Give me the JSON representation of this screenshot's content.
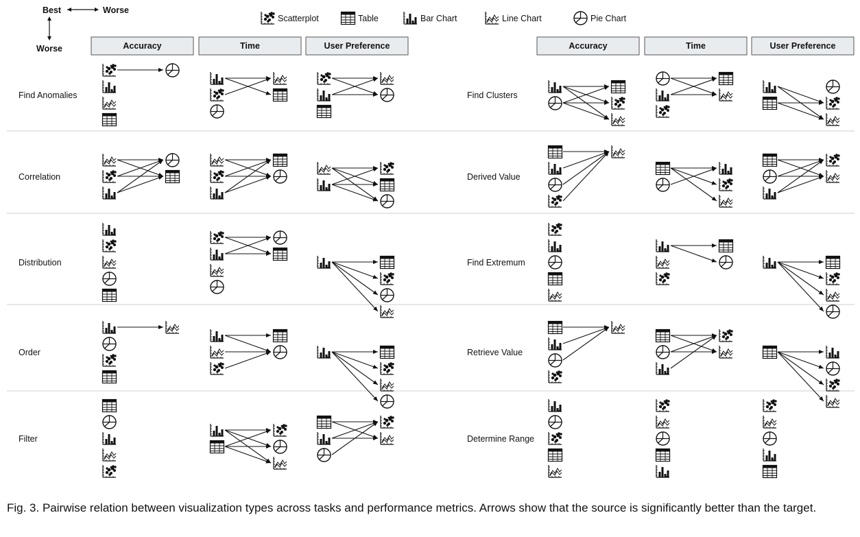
{
  "axis_legend": {
    "best": "Best",
    "worse_h": "Worse",
    "worse_v": "Worse"
  },
  "legend": [
    {
      "type": "scatter",
      "label": "Scatterplot"
    },
    {
      "type": "table",
      "label": "Table"
    },
    {
      "type": "bar",
      "label": "Bar  Chart"
    },
    {
      "type": "line",
      "label": "Line Chart"
    },
    {
      "type": "pie",
      "label": "Pie Chart"
    }
  ],
  "metrics": [
    "Accuracy",
    "Time",
    "User Preference"
  ],
  "halves": [
    {
      "tasks": [
        {
          "name": "Find Anomalies",
          "metrics": [
            {
              "icons": [
                "scatter",
                "bar",
                "line",
                "table"
              ],
              "targets": [
                "pie"
              ],
              "edges": [
                [
                  0,
                  0
                ]
              ]
            },
            {
              "icons": [
                "bar",
                "scatter",
                "pie"
              ],
              "targets": [
                "line",
                "table"
              ],
              "edges": [
                [
                  0,
                  0
                ],
                [
                  0,
                  1
                ],
                [
                  1,
                  0
                ]
              ]
            },
            {
              "icons": [
                "scatter",
                "bar",
                "table"
              ],
              "targets": [
                "line",
                "pie"
              ],
              "edges": [
                [
                  0,
                  0
                ],
                [
                  0,
                  1
                ],
                [
                  1,
                  0
                ],
                [
                  1,
                  1
                ]
              ]
            }
          ]
        },
        {
          "name": "Correlation",
          "metrics": [
            {
              "icons": [
                "line",
                "scatter",
                "bar"
              ],
              "targets": [
                "pie",
                "table"
              ],
              "edges": [
                [
                  0,
                  0
                ],
                [
                  0,
                  1
                ],
                [
                  1,
                  0
                ],
                [
                  1,
                  1
                ],
                [
                  2,
                  0
                ],
                [
                  2,
                  1
                ]
              ]
            },
            {
              "icons": [
                "line",
                "scatter",
                "bar"
              ],
              "targets": [
                "table",
                "pie"
              ],
              "edges": [
                [
                  0,
                  0
                ],
                [
                  0,
                  1
                ],
                [
                  1,
                  0
                ],
                [
                  1,
                  1
                ],
                [
                  2,
                  0
                ],
                [
                  2,
                  1
                ]
              ]
            },
            {
              "icons": [
                "line",
                "bar"
              ],
              "targets": [
                "scatter",
                "table",
                "pie"
              ],
              "edges": [
                [
                  0,
                  0
                ],
                [
                  0,
                  1
                ],
                [
                  0,
                  2
                ],
                [
                  1,
                  0
                ],
                [
                  1,
                  1
                ],
                [
                  1,
                  2
                ]
              ]
            }
          ]
        },
        {
          "name": "Distribution",
          "metrics": [
            {
              "icons": [
                "bar",
                "scatter",
                "line",
                "pie",
                "table"
              ],
              "targets": [],
              "edges": []
            },
            {
              "icons": [
                "scatter",
                "bar",
                "line",
                "pie"
              ],
              "targets": [
                "pie",
                "table"
              ],
              "edges": [
                [
                  0,
                  0
                ],
                [
                  0,
                  1
                ],
                [
                  1,
                  0
                ],
                [
                  1,
                  1
                ]
              ]
            },
            {
              "icons": [
                "bar"
              ],
              "targets": [
                "table",
                "scatter",
                "pie",
                "line"
              ],
              "edges": [
                [
                  0,
                  0
                ],
                [
                  0,
                  1
                ],
                [
                  0,
                  2
                ],
                [
                  0,
                  3
                ]
              ]
            }
          ]
        },
        {
          "name": "Order",
          "metrics": [
            {
              "icons": [
                "bar",
                "pie",
                "scatter",
                "table"
              ],
              "targets": [
                "line"
              ],
              "edges": [
                [
                  0,
                  0
                ]
              ]
            },
            {
              "icons": [
                "bar",
                "line",
                "scatter"
              ],
              "targets": [
                "table",
                "pie"
              ],
              "edges": [
                [
                  0,
                  0
                ],
                [
                  0,
                  1
                ],
                [
                  1,
                  1
                ],
                [
                  2,
                  1
                ]
              ]
            },
            {
              "icons": [
                "bar"
              ],
              "targets": [
                "table",
                "scatter",
                "line",
                "pie"
              ],
              "edges": [
                [
                  0,
                  0
                ],
                [
                  0,
                  1
                ],
                [
                  0,
                  2
                ],
                [
                  0,
                  3
                ]
              ]
            }
          ]
        },
        {
          "name": "Filter",
          "metrics": [
            {
              "icons": [
                "table",
                "pie",
                "bar",
                "line",
                "scatter"
              ],
              "targets": [],
              "edges": []
            },
            {
              "icons": [
                "bar",
                "table"
              ],
              "targets": [
                "scatter",
                "pie",
                "line"
              ],
              "edges": [
                [
                  0,
                  0
                ],
                [
                  0,
                  1
                ],
                [
                  0,
                  2
                ],
                [
                  1,
                  0
                ],
                [
                  1,
                  1
                ],
                [
                  1,
                  2
                ]
              ]
            },
            {
              "icons": [
                "table",
                "bar",
                "pie"
              ],
              "targets": [
                "scatter",
                "line"
              ],
              "edges": [
                [
                  0,
                  0
                ],
                [
                  0,
                  1
                ],
                [
                  1,
                  0
                ],
                [
                  1,
                  1
                ],
                [
                  2,
                  0
                ]
              ]
            }
          ]
        }
      ]
    },
    {
      "tasks": [
        {
          "name": "Find Clusters",
          "metrics": [
            {
              "icons": [
                "bar",
                "pie"
              ],
              "targets": [
                "table",
                "scatter",
                "line"
              ],
              "edges": [
                [
                  0,
                  0
                ],
                [
                  0,
                  1
                ],
                [
                  0,
                  2
                ],
                [
                  1,
                  0
                ],
                [
                  1,
                  1
                ],
                [
                  1,
                  2
                ]
              ]
            },
            {
              "icons": [
                "pie",
                "bar",
                "scatter"
              ],
              "targets": [
                "table",
                "line"
              ],
              "edges": [
                [
                  0,
                  0
                ],
                [
                  0,
                  1
                ],
                [
                  1,
                  0
                ],
                [
                  1,
                  1
                ]
              ]
            },
            {
              "icons": [
                "bar",
                "table"
              ],
              "targets": [
                "pie",
                "scatter",
                "line"
              ],
              "edges": [
                [
                  0,
                  1
                ],
                [
                  0,
                  2
                ],
                [
                  1,
                  1
                ],
                [
                  1,
                  2
                ]
              ]
            }
          ]
        },
        {
          "name": "Derived Value",
          "metrics": [
            {
              "icons": [
                "table",
                "bar",
                "pie",
                "scatter"
              ],
              "targets": [
                "line"
              ],
              "edges": [
                [
                  0,
                  0
                ],
                [
                  1,
                  0
                ],
                [
                  2,
                  0
                ],
                [
                  3,
                  0
                ]
              ]
            },
            {
              "icons": [
                "table",
                "pie"
              ],
              "targets": [
                "bar",
                "scatter",
                "line"
              ],
              "edges": [
                [
                  0,
                  0
                ],
                [
                  0,
                  1
                ],
                [
                  0,
                  2
                ],
                [
                  1,
                  0
                ]
              ]
            },
            {
              "icons": [
                "table",
                "pie",
                "bar"
              ],
              "targets": [
                "scatter",
                "line"
              ],
              "edges": [
                [
                  0,
                  0
                ],
                [
                  0,
                  1
                ],
                [
                  1,
                  0
                ],
                [
                  1,
                  1
                ],
                [
                  2,
                  0
                ],
                [
                  2,
                  1
                ]
              ]
            }
          ]
        },
        {
          "name": "Find Extremum",
          "metrics": [
            {
              "icons": [
                "scatter",
                "bar",
                "pie",
                "table",
                "line"
              ],
              "targets": [],
              "edges": []
            },
            {
              "icons": [
                "bar",
                "line",
                "scatter"
              ],
              "targets": [
                "table",
                "pie"
              ],
              "edges": [
                [
                  0,
                  0
                ],
                [
                  0,
                  1
                ]
              ]
            },
            {
              "icons": [
                "bar"
              ],
              "targets": [
                "table",
                "scatter",
                "line",
                "pie"
              ],
              "edges": [
                [
                  0,
                  0
                ],
                [
                  0,
                  1
                ],
                [
                  0,
                  2
                ],
                [
                  0,
                  3
                ]
              ]
            }
          ]
        },
        {
          "name": "Retrieve Value",
          "metrics": [
            {
              "icons": [
                "table",
                "bar",
                "pie",
                "scatter"
              ],
              "targets": [
                "line"
              ],
              "edges": [
                [
                  0,
                  0
                ],
                [
                  1,
                  0
                ],
                [
                  2,
                  0
                ]
              ]
            },
            {
              "icons": [
                "table",
                "pie",
                "bar"
              ],
              "targets": [
                "scatter",
                "line"
              ],
              "edges": [
                [
                  0,
                  0
                ],
                [
                  0,
                  1
                ],
                [
                  1,
                  0
                ],
                [
                  1,
                  1
                ],
                [
                  2,
                  0
                ]
              ]
            },
            {
              "icons": [
                "table"
              ],
              "targets": [
                "bar",
                "pie",
                "scatter",
                "line"
              ],
              "edges": [
                [
                  0,
                  0
                ],
                [
                  0,
                  1
                ],
                [
                  0,
                  2
                ],
                [
                  0,
                  3
                ]
              ]
            }
          ]
        },
        {
          "name": "Determine Range",
          "metrics": [
            {
              "icons": [
                "bar",
                "pie",
                "scatter",
                "table",
                "line"
              ],
              "targets": [],
              "edges": []
            },
            {
              "icons": [
                "scatter",
                "line",
                "pie",
                "table",
                "bar"
              ],
              "targets": [],
              "edges": []
            },
            {
              "icons": [
                "scatter",
                "line",
                "pie",
                "bar",
                "table"
              ],
              "targets": [],
              "edges": []
            }
          ]
        }
      ]
    }
  ],
  "caption": "Fig. 3. Pairwise relation between visualization types across tasks and performance metrics. Arrows show that the source is significantly better than the target."
}
